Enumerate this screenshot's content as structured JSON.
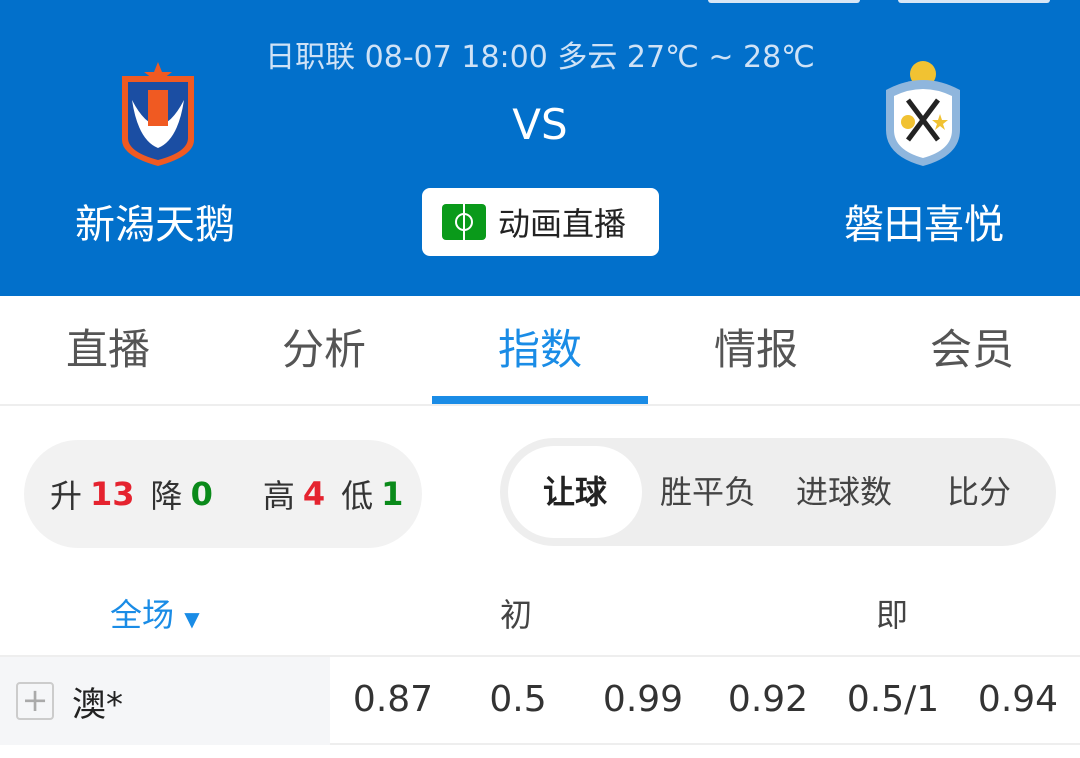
{
  "header": {
    "match_info": "日职联 08-07 18:00 多云 27℃ ~ 28℃",
    "vs": "VS",
    "home_team": "新潟天鹅",
    "away_team": "磐田喜悦",
    "live_button": "动画直播",
    "bg_color": "#0270cb"
  },
  "tabs": [
    {
      "label": "直播"
    },
    {
      "label": "分析"
    },
    {
      "label": "指数",
      "active": true
    },
    {
      "label": "情报"
    },
    {
      "label": "会员"
    }
  ],
  "stats": {
    "up_label": "升",
    "up": "13",
    "down_label": "降",
    "down": "0",
    "high_label": "高",
    "high": "4",
    "low_label": "低",
    "low": "1"
  },
  "segments": [
    {
      "label": "让球",
      "selected": true
    },
    {
      "label": "胜平负"
    },
    {
      "label": "进球数"
    },
    {
      "label": "比分"
    }
  ],
  "columns": {
    "scope": "全场",
    "initial": "初",
    "live": "即"
  },
  "rows": [
    {
      "company": "澳*",
      "initial": [
        "0.87",
        "0.5",
        "0.99"
      ],
      "live": [
        "0.92",
        "0.5/1",
        "0.94"
      ]
    }
  ]
}
